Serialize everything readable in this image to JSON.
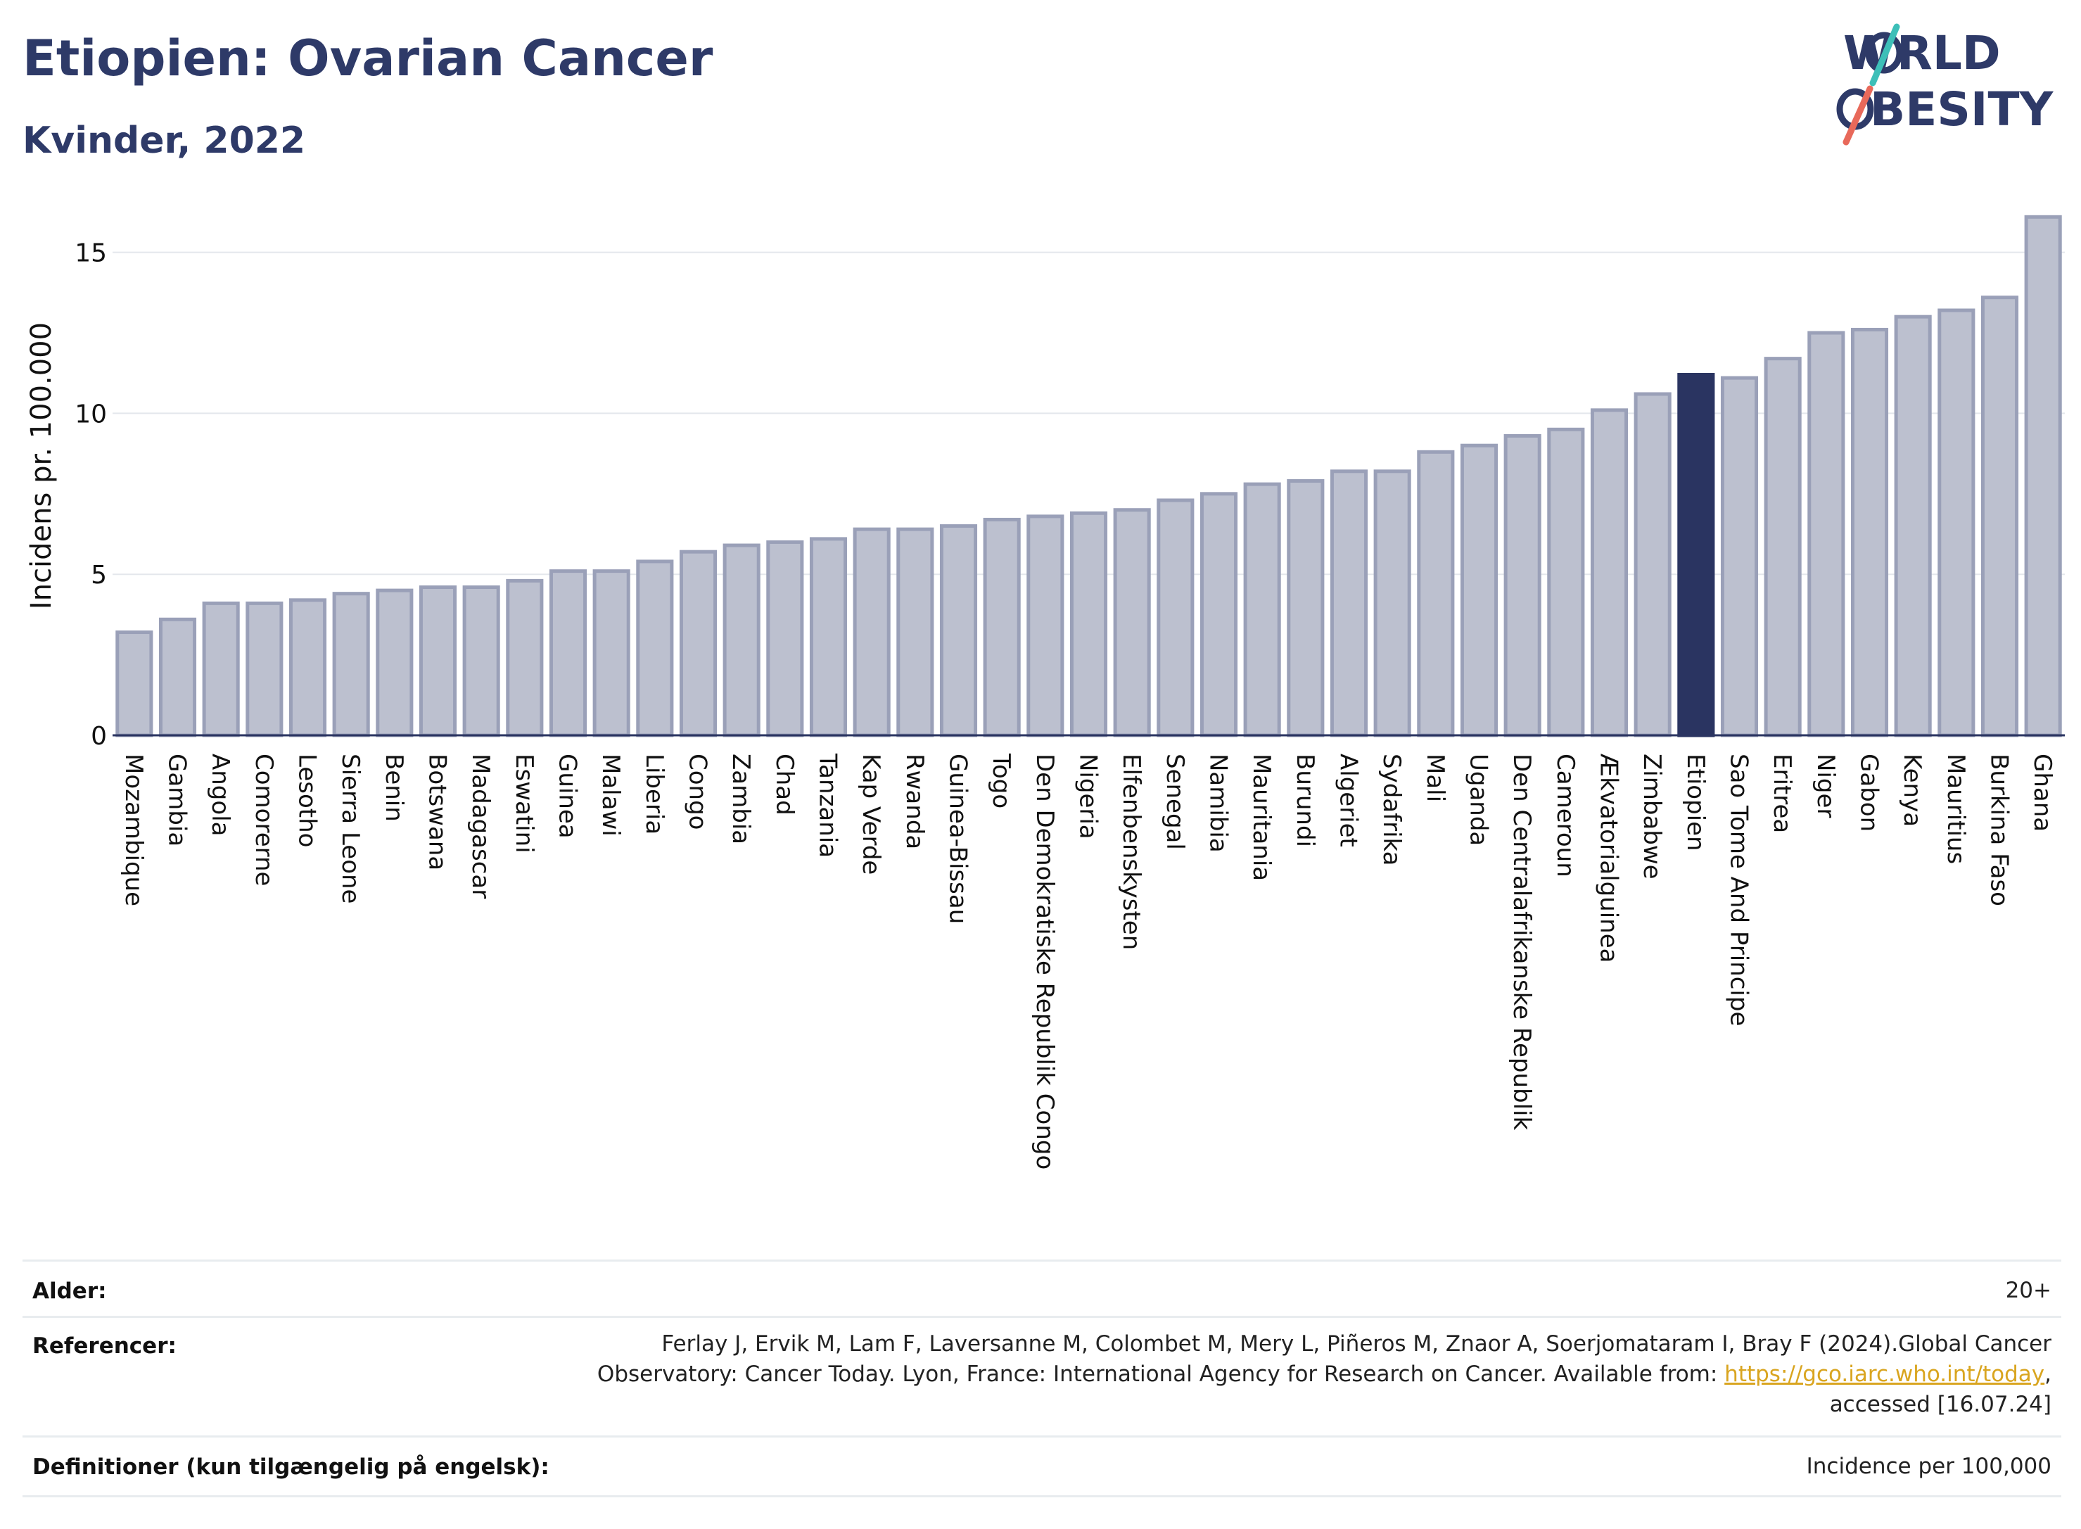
{
  "header": {
    "title": "Etiopien: Ovarian Cancer",
    "subtitle": "Kvinder, 2022"
  },
  "logo": {
    "line1": "WORLD",
    "line2": "OBESITY"
  },
  "chart_data": {
    "type": "bar",
    "ylabel": "Incidens pr. 100.000",
    "ylim": [
      0,
      16.5
    ],
    "yticks": [
      0,
      5,
      10,
      15
    ],
    "grid": true,
    "highlight": "Etiopien",
    "colors": {
      "bar": "#bcc0cf",
      "bar_edge": "#9aa0b8",
      "highlight": "#2a3461",
      "grid": "#e4e7ec",
      "axis": "#2a3461"
    },
    "categories": [
      "Mozambique",
      "Gambia",
      "Angola",
      "Comorerne",
      "Lesotho",
      "Sierra Leone",
      "Benin",
      "Botswana",
      "Madagascar",
      "Eswatini",
      "Guinea",
      "Malawi",
      "Liberia",
      "Congo",
      "Zambia",
      "Chad",
      "Tanzania",
      "Kap Verde",
      "Rwanda",
      "Guinea-Bissau",
      "Togo",
      "Den Demokratiske Republik Congo",
      "Nigeria",
      "Elfenbenskysten",
      "Senegal",
      "Namibia",
      "Mauritania",
      "Burundi",
      "Algeriet",
      "Sydafrika",
      "Mali",
      "Uganda",
      "Den Centralafrikanske Republik",
      "Cameroun",
      "Ækvatorialguinea",
      "Zimbabwe",
      "Etiopien",
      "Sao Tome And Principe",
      "Eritrea",
      "Niger",
      "Gabon",
      "Kenya",
      "Mauritius",
      "Burkina Faso",
      "Ghana"
    ],
    "values": [
      3.2,
      3.6,
      4.1,
      4.1,
      4.2,
      4.4,
      4.5,
      4.6,
      4.6,
      4.8,
      5.1,
      5.1,
      5.4,
      5.7,
      5.9,
      6.0,
      6.1,
      6.4,
      6.4,
      6.5,
      6.7,
      6.8,
      6.9,
      7.0,
      7.3,
      7.5,
      7.8,
      7.9,
      8.2,
      8.2,
      8.8,
      9.0,
      9.3,
      9.5,
      10.1,
      10.6,
      11.2,
      11.1,
      11.7,
      12.5,
      12.6,
      13.0,
      13.2,
      13.6,
      16.1
    ]
  },
  "meta": {
    "age_label": "Alder:",
    "age_value": "20+",
    "ref_label": "Referencer:",
    "ref_line1": "Ferlay J, Ervik M, Lam F, Laversanne M, Colombet M, Mery L, Piñeros M, Znaor A, Soerjomataram I, Bray F (2024).Global Cancer",
    "ref_line2": "Observatory: Cancer Today. Lyon, France: International Agency for Research on Cancer. Available from: ",
    "ref_link": "https://gco.iarc.who.int/today",
    "ref_line2_end": ",",
    "ref_line3": "accessed [16.07.24]",
    "def_label": "Definitioner (kun tilgængelig på engelsk):",
    "def_value": "Incidence per 100,000"
  }
}
